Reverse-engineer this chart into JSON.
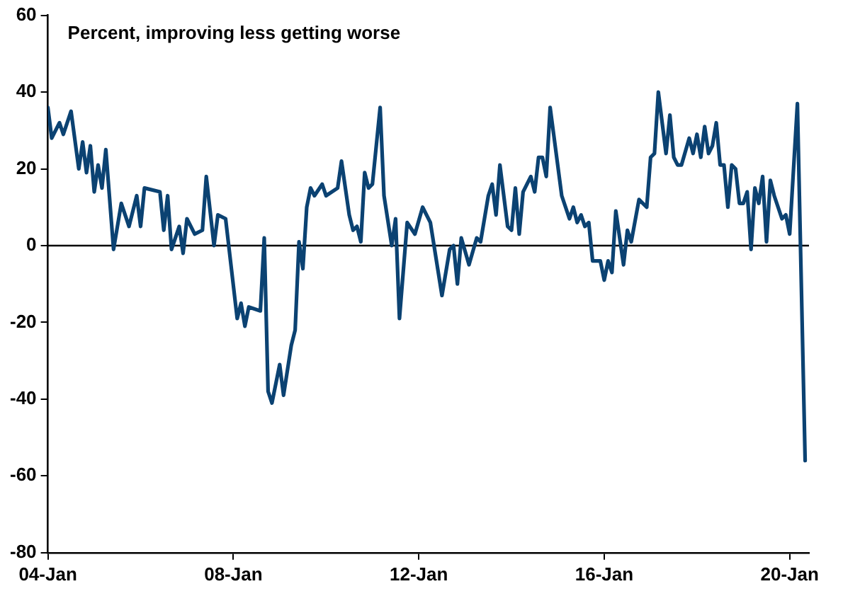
{
  "chart_data": {
    "type": "line",
    "title": "Percent, improving less getting worse",
    "x": [
      "2004-01",
      "2004-02",
      "2004-04",
      "2004-05",
      "2004-07",
      "2004-09",
      "2004-10",
      "2004-11",
      "2004-12",
      "2005-01",
      "2005-02",
      "2005-03",
      "2005-04",
      "2005-06",
      "2005-08",
      "2005-10",
      "2005-12",
      "2006-01",
      "2006-02",
      "2006-06",
      "2006-07",
      "2006-08",
      "2006-09",
      "2006-11",
      "2006-12",
      "2007-01",
      "2007-03",
      "2007-05",
      "2007-06",
      "2007-08",
      "2007-09",
      "2007-11",
      "2008-02",
      "2008-03",
      "2008-04",
      "2008-05",
      "2008-08",
      "2008-09",
      "2008-10",
      "2008-11",
      "2009-01",
      "2009-02",
      "2009-04",
      "2009-05",
      "2009-06",
      "2009-07",
      "2009-08",
      "2009-09",
      "2009-10",
      "2009-12",
      "2010-01",
      "2010-04",
      "2010-05",
      "2010-07",
      "2010-08",
      "2010-09",
      "2010-10",
      "2010-11",
      "2010-12",
      "2011-01",
      "2011-03",
      "2011-04",
      "2011-06",
      "2011-07",
      "2011-08",
      "2011-10",
      "2011-12",
      "2012-02",
      "2012-04",
      "2012-07",
      "2012-09",
      "2012-10",
      "2012-11",
      "2012-12",
      "2013-02",
      "2013-04",
      "2013-05",
      "2013-07",
      "2013-08",
      "2013-09",
      "2013-10",
      "2013-12",
      "2014-01",
      "2014-02",
      "2014-03",
      "2014-04",
      "2014-06",
      "2014-07",
      "2014-08",
      "2014-09",
      "2014-10",
      "2014-11",
      "2015-02",
      "2015-04",
      "2015-05",
      "2015-06",
      "2015-07",
      "2015-08",
      "2015-09",
      "2015-10",
      "2015-12",
      "2016-01",
      "2016-02",
      "2016-03",
      "2016-04",
      "2016-06",
      "2016-07",
      "2016-08",
      "2016-10",
      "2016-12",
      "2017-01",
      "2017-02",
      "2017-03",
      "2017-05",
      "2017-06",
      "2017-07",
      "2017-08",
      "2017-09",
      "2017-11",
      "2017-12",
      "2018-01",
      "2018-02",
      "2018-03",
      "2018-04",
      "2018-05",
      "2018-06",
      "2018-07",
      "2018-08",
      "2018-09",
      "2018-10",
      "2018-11",
      "2018-12",
      "2019-01",
      "2019-02",
      "2019-03",
      "2019-04",
      "2019-05",
      "2019-06",
      "2019-07",
      "2019-08",
      "2019-09",
      "2019-11",
      "2019-12",
      "2020-01",
      "2020-03",
      "2020-05"
    ],
    "series": [
      {
        "color": "#0b4272",
        "values": [
          36,
          28,
          32,
          29,
          35,
          20,
          27,
          19,
          26,
          14,
          21,
          15,
          25,
          -1,
          11,
          5,
          13,
          5,
          15,
          14,
          4,
          13,
          -1,
          5,
          -2,
          7,
          3,
          4,
          18,
          0,
          8,
          7,
          -19,
          -15,
          -21,
          -16,
          -17,
          2,
          -38,
          -41,
          -31,
          -39,
          -26,
          -22,
          1,
          -6,
          10,
          15,
          13,
          16,
          13,
          15,
          22,
          8,
          4,
          5,
          1,
          19,
          15,
          16,
          36,
          13,
          0,
          7,
          -19,
          6,
          3,
          10,
          6,
          -13,
          -1,
          0,
          -10,
          2,
          -5,
          2,
          1,
          13,
          16,
          8,
          21,
          5,
          4,
          15,
          3,
          14,
          18,
          14,
          23,
          23,
          18,
          36,
          13,
          7,
          10,
          6,
          8,
          5,
          6,
          -4,
          -4,
          -9,
          -4,
          -7,
          9,
          -5,
          4,
          1,
          12,
          10,
          23,
          24,
          40,
          24,
          34,
          23,
          21,
          21,
          28,
          24,
          29,
          23,
          31,
          24,
          26,
          32,
          21,
          21,
          10,
          21,
          20,
          11,
          11,
          14,
          -1,
          15,
          11,
          18,
          1,
          17,
          13,
          7,
          8,
          3,
          37,
          -56
        ]
      }
    ],
    "xlim": [
      "2004-01",
      "2020-06"
    ],
    "xticks": [
      {
        "value": "2004-01",
        "label": "04-Jan"
      },
      {
        "value": "2008-01",
        "label": "08-Jan"
      },
      {
        "value": "2012-01",
        "label": "12-Jan"
      },
      {
        "value": "2016-01",
        "label": "16-Jan"
      },
      {
        "value": "2020-01",
        "label": "20-Jan"
      }
    ],
    "ylim": [
      -80,
      60
    ],
    "yticks": [
      -80,
      -60,
      -40,
      -20,
      0,
      20,
      40,
      60
    ],
    "ref_lines": [
      {
        "axis": "y",
        "value": 0,
        "color": "#000000"
      }
    ],
    "grid": false,
    "legend": false,
    "marker": "none",
    "line_style": "solid"
  }
}
